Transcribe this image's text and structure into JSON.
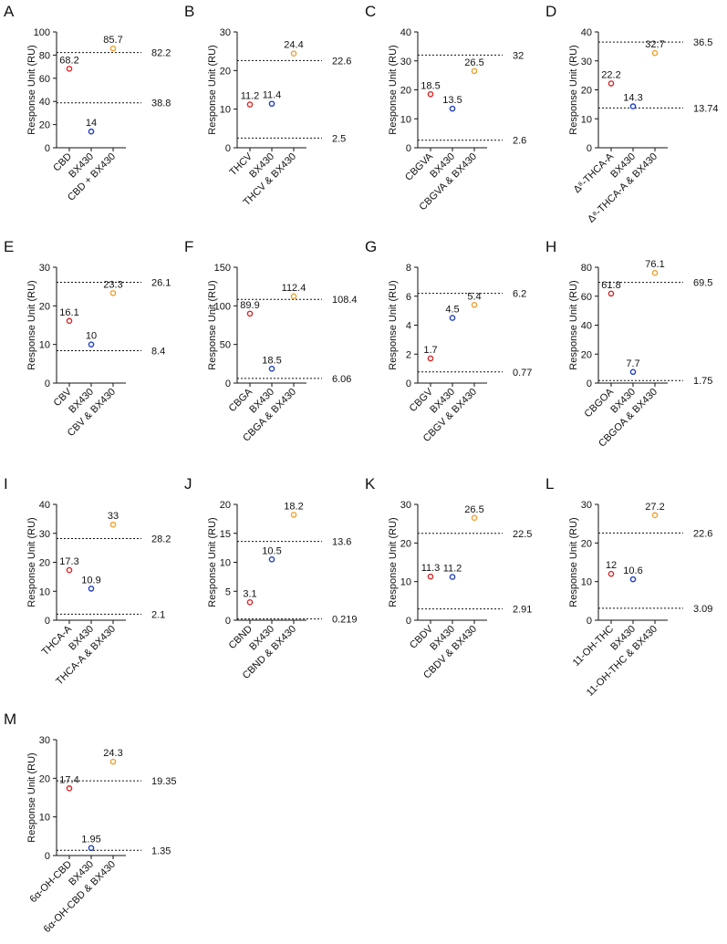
{
  "chart_data": [
    {
      "type": "dot",
      "panel": "A",
      "ylabel": "Response Unit (RU)",
      "categories": [
        "CBD",
        "BX430",
        "CBD + BX430"
      ],
      "values": [
        68.2,
        14,
        85.7
      ],
      "colors": [
        "#d62728",
        "#1f3fbf",
        "#f0a030"
      ],
      "ref_lines": [
        82.2,
        38.8
      ],
      "ylim": [
        0,
        100
      ],
      "yticks": [
        0,
        20,
        40,
        60,
        80,
        100
      ]
    },
    {
      "type": "dot",
      "panel": "B",
      "ylabel": "Response Unit (RU)",
      "categories": [
        "THCV",
        "BX430",
        "THCV & BX430"
      ],
      "values": [
        11.2,
        11.4,
        24.4
      ],
      "colors": [
        "#d62728",
        "#1f3fbf",
        "#f0a030"
      ],
      "ref_lines": [
        22.6,
        2.5
      ],
      "ylim": [
        0,
        30
      ],
      "yticks": [
        0,
        10,
        20,
        30
      ]
    },
    {
      "type": "dot",
      "panel": "C",
      "ylabel": "Response Unit (RU)",
      "categories": [
        "CBGVA",
        "BX430",
        "CBGVA & BX430"
      ],
      "values": [
        18.5,
        13.5,
        26.5
      ],
      "colors": [
        "#d62728",
        "#1f3fbf",
        "#f0a030"
      ],
      "ref_lines": [
        32,
        2.6
      ],
      "ylim": [
        0,
        40
      ],
      "yticks": [
        0,
        10,
        20,
        30,
        40
      ]
    },
    {
      "type": "dot",
      "panel": "D",
      "ylabel": "Response Unit (RU)",
      "categories": [
        "Δ⁸-THCA-A",
        "BX430",
        "Δ⁸-THCA-A & BX430"
      ],
      "values": [
        22.2,
        14.3,
        32.7
      ],
      "colors": [
        "#d62728",
        "#1f3fbf",
        "#f0a030"
      ],
      "ref_lines": [
        36.5,
        13.74
      ],
      "ylim": [
        0,
        40
      ],
      "yticks": [
        0,
        10,
        20,
        30,
        40
      ]
    },
    {
      "type": "dot",
      "panel": "E",
      "ylabel": "Response Unit (RU)",
      "categories": [
        "CBV",
        "BX430",
        "CBV & BX430"
      ],
      "values": [
        16.1,
        10,
        23.3
      ],
      "colors": [
        "#d62728",
        "#1f3fbf",
        "#f0a030"
      ],
      "ref_lines": [
        26.1,
        8.4
      ],
      "ylim": [
        0,
        30
      ],
      "yticks": [
        0,
        10,
        20,
        30
      ]
    },
    {
      "type": "dot",
      "panel": "F",
      "ylabel": "Response Unit (RU)",
      "categories": [
        "CBGA",
        "BX430",
        "CBGA & BX430"
      ],
      "values": [
        89.9,
        18.5,
        112.4
      ],
      "colors": [
        "#d62728",
        "#1f3fbf",
        "#f0a030"
      ],
      "ref_lines": [
        108.4,
        6.06
      ],
      "ylim": [
        0,
        150
      ],
      "yticks": [
        0,
        50,
        100,
        150
      ]
    },
    {
      "type": "dot",
      "panel": "G",
      "ylabel": "Response Unit (RU)",
      "categories": [
        "CBGV",
        "BX430",
        "CBGV & BX430"
      ],
      "values": [
        1.7,
        4.5,
        5.4
      ],
      "colors": [
        "#d62728",
        "#1f3fbf",
        "#f0a030"
      ],
      "ref_lines": [
        6.2,
        0.77
      ],
      "ylim": [
        0,
        8
      ],
      "yticks": [
        0,
        2,
        4,
        6,
        8
      ]
    },
    {
      "type": "dot",
      "panel": "H",
      "ylabel": "Response Unit (RU)",
      "categories": [
        "CBGOA",
        "BX430",
        "CBGOA & BX430"
      ],
      "values": [
        61.8,
        7.7,
        76.1
      ],
      "colors": [
        "#d62728",
        "#1f3fbf",
        "#f0a030"
      ],
      "ref_lines": [
        69.5,
        1.75
      ],
      "ylim": [
        0,
        80
      ],
      "yticks": [
        0,
        20,
        40,
        60,
        80
      ]
    },
    {
      "type": "dot",
      "panel": "I",
      "ylabel": "Response Unit (RU)",
      "categories": [
        "THCA-A",
        "BX430",
        "THCA-A & BX430"
      ],
      "values": [
        17.3,
        10.9,
        33
      ],
      "colors": [
        "#d62728",
        "#1f3fbf",
        "#f0a030"
      ],
      "ref_lines": [
        28.2,
        2.1
      ],
      "ylim": [
        0,
        40
      ],
      "yticks": [
        0,
        10,
        20,
        30,
        40
      ]
    },
    {
      "type": "dot",
      "panel": "J",
      "ylabel": "Response Unit (RU)",
      "categories": [
        "CBND",
        "BX430",
        "CBND & BX430"
      ],
      "values": [
        3.1,
        10.5,
        18.2
      ],
      "colors": [
        "#d62728",
        "#1f3fbf",
        "#f0a030"
      ],
      "ref_lines": [
        13.6,
        0.219
      ],
      "ylim": [
        0,
        20
      ],
      "yticks": [
        0,
        5,
        10,
        15,
        20
      ]
    },
    {
      "type": "dot",
      "panel": "K",
      "ylabel": "Response Unit (RU)",
      "categories": [
        "CBDV",
        "BX430",
        "CBDV & BX430"
      ],
      "values": [
        11.3,
        11.2,
        26.5
      ],
      "colors": [
        "#d62728",
        "#1f3fbf",
        "#f0a030"
      ],
      "ref_lines": [
        22.5,
        2.91
      ],
      "ylim": [
        0,
        30
      ],
      "yticks": [
        0,
        10,
        20,
        30
      ]
    },
    {
      "type": "dot",
      "panel": "L",
      "ylabel": "Response Unit (RU)",
      "categories": [
        "11-OH-THC",
        "BX430",
        "11-OH-THC & BX430"
      ],
      "values": [
        12,
        10.6,
        27.2
      ],
      "colors": [
        "#d62728",
        "#1f3fbf",
        "#f0a030"
      ],
      "ref_lines": [
        22.6,
        3.09
      ],
      "ylim": [
        0,
        30
      ],
      "yticks": [
        0,
        10,
        20,
        30
      ]
    },
    {
      "type": "dot",
      "panel": "M",
      "ylabel": "Response Unit (RU)",
      "categories": [
        "6α-OH-CBD",
        "BX430",
        "6α-OH-CBD & BX430"
      ],
      "values": [
        17.4,
        1.95,
        24.3
      ],
      "colors": [
        "#d62728",
        "#1f3fbf",
        "#f0a030"
      ],
      "ref_lines": [
        19.35,
        1.35
      ],
      "ylim": [
        0,
        30
      ],
      "yticks": [
        0,
        10,
        20,
        30
      ]
    }
  ]
}
